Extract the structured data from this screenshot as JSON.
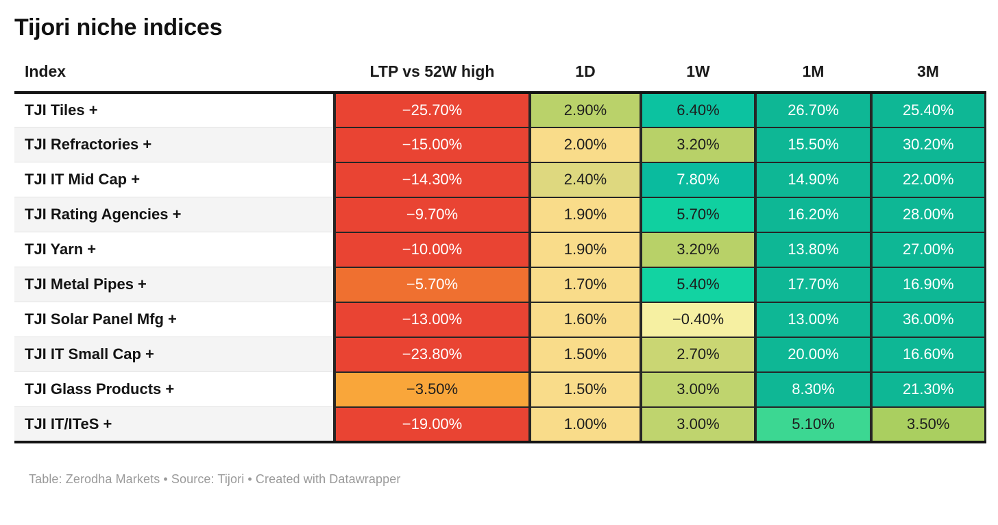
{
  "title": "Tijori niche indices",
  "footer": {
    "text": "Table: Zerodha Markets • Source: Tijori • Created with Datawrapper"
  },
  "table": {
    "headers": [
      "Index",
      "LTP vs 52W high",
      "1D",
      "1W",
      "1M",
      "3M"
    ],
    "rows": [
      {
        "index": "TJI Tiles +",
        "cells": [
          {
            "t": "−25.70%",
            "bg": "#e94433",
            "fg": "#ffffff"
          },
          {
            "t": "2.90%",
            "bg": "#bad26a",
            "fg": "#1d1d1d"
          },
          {
            "t": "6.40%",
            "bg": "#0cc2a0",
            "fg": "#1d1d1d"
          },
          {
            "t": "26.70%",
            "bg": "#0eb795",
            "fg": "#ffffff"
          },
          {
            "t": "25.40%",
            "bg": "#0eb795",
            "fg": "#ffffff"
          }
        ]
      },
      {
        "index": "TJI Refractories +",
        "cells": [
          {
            "t": "−15.00%",
            "bg": "#e94433",
            "fg": "#ffffff"
          },
          {
            "t": "2.00%",
            "bg": "#f9dc8a",
            "fg": "#1d1d1d"
          },
          {
            "t": "3.20%",
            "bg": "#b8d168",
            "fg": "#1d1d1d"
          },
          {
            "t": "15.50%",
            "bg": "#0eb795",
            "fg": "#ffffff"
          },
          {
            "t": "30.20%",
            "bg": "#0eb795",
            "fg": "#ffffff"
          }
        ]
      },
      {
        "index": "TJI IT Mid Cap +",
        "cells": [
          {
            "t": "−14.30%",
            "bg": "#e94433",
            "fg": "#ffffff"
          },
          {
            "t": "2.40%",
            "bg": "#ded87f",
            "fg": "#1d1d1d"
          },
          {
            "t": "7.80%",
            "bg": "#0abb9e",
            "fg": "#ffffff"
          },
          {
            "t": "14.90%",
            "bg": "#0eb795",
            "fg": "#ffffff"
          },
          {
            "t": "22.00%",
            "bg": "#0eb795",
            "fg": "#ffffff"
          }
        ]
      },
      {
        "index": "TJI Rating Agencies +",
        "cells": [
          {
            "t": "−9.70%",
            "bg": "#e94433",
            "fg": "#ffffff"
          },
          {
            "t": "1.90%",
            "bg": "#f9dc8a",
            "fg": "#1d1d1d"
          },
          {
            "t": "5.70%",
            "bg": "#10d0a0",
            "fg": "#1d1d1d"
          },
          {
            "t": "16.20%",
            "bg": "#0eb795",
            "fg": "#ffffff"
          },
          {
            "t": "28.00%",
            "bg": "#0eb795",
            "fg": "#ffffff"
          }
        ]
      },
      {
        "index": "TJI Yarn +",
        "cells": [
          {
            "t": "−10.00%",
            "bg": "#e94433",
            "fg": "#ffffff"
          },
          {
            "t": "1.90%",
            "bg": "#f9dc8a",
            "fg": "#1d1d1d"
          },
          {
            "t": "3.20%",
            "bg": "#b8d168",
            "fg": "#1d1d1d"
          },
          {
            "t": "13.80%",
            "bg": "#0eb795",
            "fg": "#ffffff"
          },
          {
            "t": "27.00%",
            "bg": "#0eb795",
            "fg": "#ffffff"
          }
        ]
      },
      {
        "index": "TJI Metal Pipes +",
        "cells": [
          {
            "t": "−5.70%",
            "bg": "#ef7030",
            "fg": "#ffffff"
          },
          {
            "t": "1.70%",
            "bg": "#f9dc8a",
            "fg": "#1d1d1d"
          },
          {
            "t": "5.40%",
            "bg": "#12d3a2",
            "fg": "#1d1d1d"
          },
          {
            "t": "17.70%",
            "bg": "#0eb795",
            "fg": "#ffffff"
          },
          {
            "t": "16.90%",
            "bg": "#0eb795",
            "fg": "#ffffff"
          }
        ]
      },
      {
        "index": "TJI Solar Panel Mfg +",
        "cells": [
          {
            "t": "−13.00%",
            "bg": "#e94433",
            "fg": "#ffffff"
          },
          {
            "t": "1.60%",
            "bg": "#f9dc8a",
            "fg": "#1d1d1d"
          },
          {
            "t": "−0.40%",
            "bg": "#f6f0a2",
            "fg": "#1d1d1d"
          },
          {
            "t": "13.00%",
            "bg": "#0eb795",
            "fg": "#ffffff"
          },
          {
            "t": "36.00%",
            "bg": "#0eb795",
            "fg": "#ffffff"
          }
        ]
      },
      {
        "index": "TJI IT Small Cap +",
        "cells": [
          {
            "t": "−23.80%",
            "bg": "#e94433",
            "fg": "#ffffff"
          },
          {
            "t": "1.50%",
            "bg": "#f9dc8a",
            "fg": "#1d1d1d"
          },
          {
            "t": "2.70%",
            "bg": "#cad673",
            "fg": "#1d1d1d"
          },
          {
            "t": "20.00%",
            "bg": "#0eb795",
            "fg": "#ffffff"
          },
          {
            "t": "16.60%",
            "bg": "#0eb795",
            "fg": "#ffffff"
          }
        ]
      },
      {
        "index": "TJI Glass Products +",
        "cells": [
          {
            "t": "−3.50%",
            "bg": "#f9a63a",
            "fg": "#1d1d1d"
          },
          {
            "t": "1.50%",
            "bg": "#f9dc8a",
            "fg": "#1d1d1d"
          },
          {
            "t": "3.00%",
            "bg": "#bfd46e",
            "fg": "#1d1d1d"
          },
          {
            "t": "8.30%",
            "bg": "#0fb795",
            "fg": "#ffffff"
          },
          {
            "t": "21.30%",
            "bg": "#0eb795",
            "fg": "#ffffff"
          }
        ]
      },
      {
        "index": "TJI IT/ITeS +",
        "cells": [
          {
            "t": "−19.00%",
            "bg": "#e94433",
            "fg": "#ffffff"
          },
          {
            "t": "1.00%",
            "bg": "#f9dc8a",
            "fg": "#1d1d1d"
          },
          {
            "t": "3.00%",
            "bg": "#bfd46e",
            "fg": "#1d1d1d"
          },
          {
            "t": "5.10%",
            "bg": "#3cd792",
            "fg": "#1d1d1d"
          },
          {
            "t": "3.50%",
            "bg": "#aacf60",
            "fg": "#1d1d1d"
          }
        ]
      }
    ]
  },
  "chart_data": {
    "type": "table",
    "title": "Tijori niche indices",
    "columns": [
      "Index",
      "LTP vs 52W high",
      "1D",
      "1W",
      "1M",
      "3M"
    ],
    "units": "percent",
    "rows": [
      [
        "TJI Tiles +",
        -25.7,
        2.9,
        6.4,
        26.7,
        25.4
      ],
      [
        "TJI Refractories +",
        -15.0,
        2.0,
        3.2,
        15.5,
        30.2
      ],
      [
        "TJI IT Mid Cap +",
        -14.3,
        2.4,
        7.8,
        14.9,
        22.0
      ],
      [
        "TJI Rating Agencies +",
        -9.7,
        1.9,
        5.7,
        16.2,
        28.0
      ],
      [
        "TJI Yarn +",
        -10.0,
        1.9,
        3.2,
        13.8,
        27.0
      ],
      [
        "TJI Metal Pipes +",
        -5.7,
        1.7,
        5.4,
        17.7,
        16.9
      ],
      [
        "TJI Solar Panel Mfg +",
        -13.0,
        1.6,
        -0.4,
        13.0,
        36.0
      ],
      [
        "TJI IT Small Cap +",
        -23.8,
        1.5,
        2.7,
        20.0,
        16.6
      ],
      [
        "TJI Glass Products +",
        -3.5,
        1.5,
        3.0,
        8.3,
        21.3
      ],
      [
        "TJI IT/ITeS +",
        -19.0,
        1.0,
        3.0,
        5.1,
        3.5
      ]
    ],
    "layout_hints": {
      "heatmap": "diverging red-yellow-green per cell",
      "negative_color": "#e94433",
      "positive_color": "#0eb795",
      "grid": "dark cell borders on value columns, striped index column"
    }
  }
}
